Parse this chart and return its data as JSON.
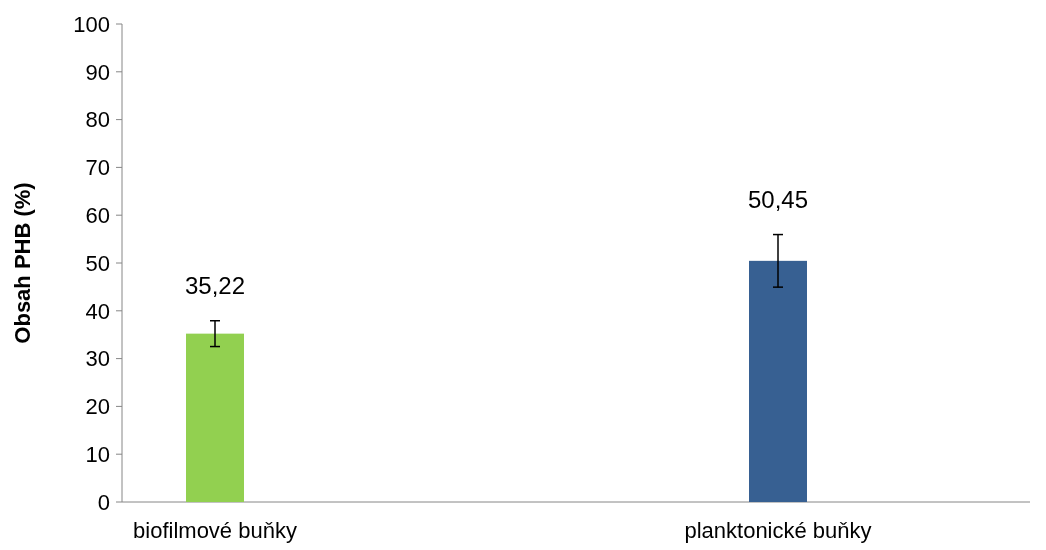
{
  "chart_data": {
    "type": "bar",
    "ylabel": "Obsah PHB (%)",
    "categories": [
      "biofilmové buňky",
      "planktonické buňky"
    ],
    "values": [
      35.22,
      50.45
    ],
    "colors": [
      "#92d050",
      "#376092"
    ],
    "errors": [
      2.7,
      5.5
    ],
    "value_labels": [
      "35,22",
      "50,45"
    ],
    "ylim": [
      0,
      100
    ],
    "yticks": [
      0,
      10,
      20,
      30,
      40,
      50,
      60,
      70,
      80,
      90,
      100
    ],
    "grid": false
  }
}
